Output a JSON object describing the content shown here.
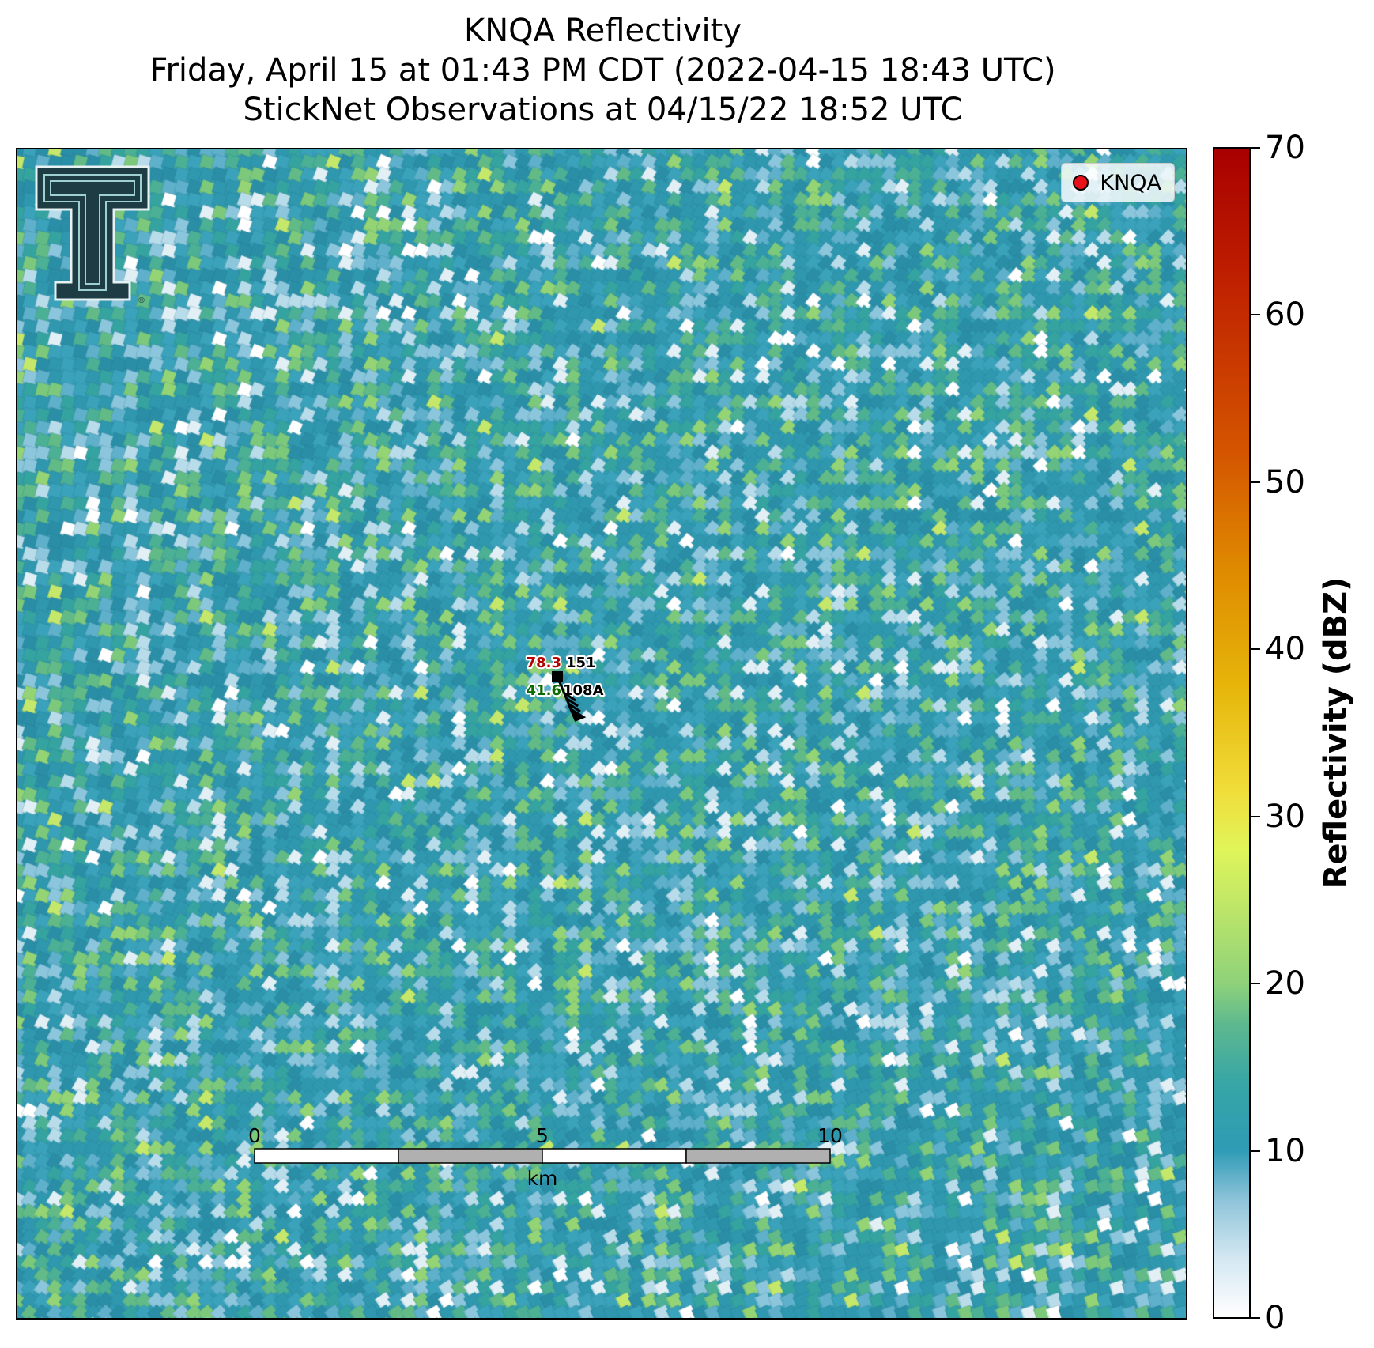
{
  "title": {
    "line1": "KNQA Reflectivity",
    "line2": "Friday, April 15 at 01:43 PM CDT (2022-04-15 18:43 UTC)",
    "line3": "StickNet Observations at 04/15/22 18:52 UTC"
  },
  "legend": {
    "label": "KNQA",
    "marker_color": "#e8101a"
  },
  "logo": {
    "name": "texas-tech-double-t-logo"
  },
  "station": {
    "id": "108A",
    "temperature": "78.3",
    "temperature_color": "#b30000",
    "pressure": "151",
    "dewpoint": "41.6",
    "dewpoint_color": "#0a6b00"
  },
  "scale_bar": {
    "labels": [
      "0",
      "5",
      "10"
    ],
    "unit": "km"
  },
  "colorbar": {
    "label": "Reflectivity (dBZ)",
    "min": 0,
    "max": 70,
    "ticks": [
      "0",
      "10",
      "20",
      "30",
      "40",
      "50",
      "60",
      "70"
    ]
  }
}
